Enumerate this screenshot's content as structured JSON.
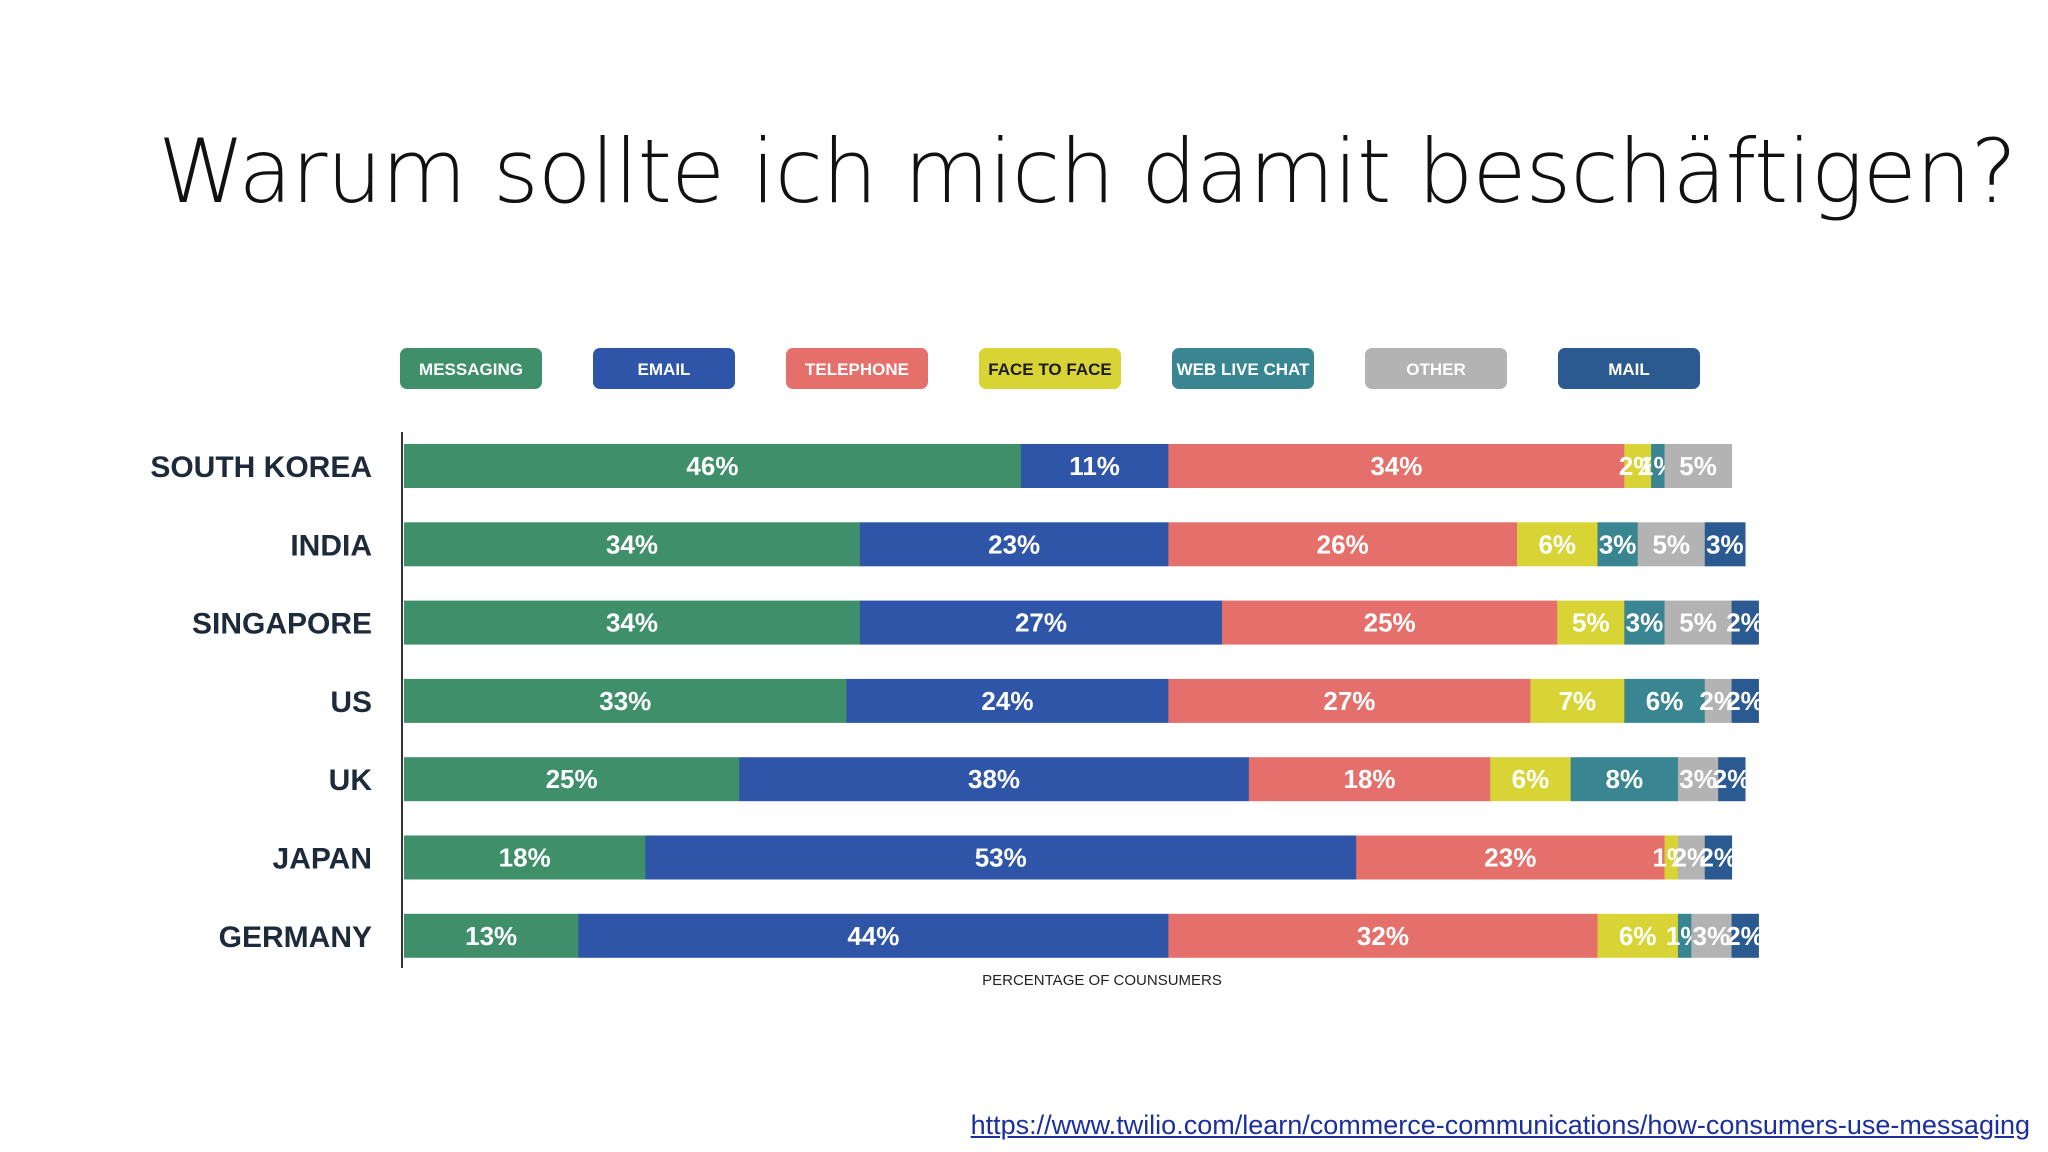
{
  "slide": {
    "title": "Warum sollte ich mich damit beschäftigen?",
    "source_url": "https://www.twilio.com/learn/commerce-communications/how-consumers-use-messaging"
  },
  "chart_data": {
    "type": "bar",
    "orientation": "horizontal",
    "stacked": true,
    "xlabel": "PERCENTAGE OF COUNSUMERS",
    "legend_position": "top",
    "categories": [
      "SOUTH KOREA",
      "INDIA",
      "SINGAPORE",
      "US",
      "UK",
      "JAPAN",
      "GERMANY"
    ],
    "series": [
      {
        "name": "MESSAGING",
        "color": "#3f8f6b",
        "values": [
          46,
          34,
          34,
          33,
          25,
          18,
          13
        ],
        "labels": [
          "46%",
          "34%",
          "34%",
          "33%",
          "25%",
          "18%",
          "13%"
        ]
      },
      {
        "name": "EMAIL",
        "color": "#2e55a8",
        "values": [
          11,
          23,
          27,
          24,
          38,
          53,
          44
        ],
        "labels": [
          "11%",
          "23%",
          "27%",
          "24%",
          "38%",
          "53%",
          "44%"
        ]
      },
      {
        "name": "TELEPHONE",
        "color": "#e5706b",
        "values": [
          34,
          26,
          25,
          27,
          18,
          23,
          32
        ],
        "labels": [
          "34%",
          "26%",
          "25%",
          "27%",
          "18%",
          "23%",
          "32%"
        ]
      },
      {
        "name": "FACE TO FACE",
        "color": "#d8d436",
        "values": [
          2,
          6,
          5,
          7,
          6,
          1,
          6
        ],
        "labels": [
          "2%",
          "6%",
          "5%",
          "7%",
          "6%",
          "1%",
          "6%"
        ]
      },
      {
        "name": "WEB LIVE CHAT",
        "color": "#3a8592",
        "values": [
          1,
          3,
          3,
          6,
          8,
          0,
          1
        ],
        "labels": [
          "1%",
          "3%",
          "3%",
          "6%",
          "8%",
          "",
          "1%"
        ]
      },
      {
        "name": "OTHER",
        "color": "#b3b3b3",
        "values": [
          5,
          5,
          5,
          2,
          3,
          2,
          3
        ],
        "labels": [
          "5%",
          "5%",
          "5%",
          "2%",
          "3%",
          "2%",
          "3%"
        ]
      },
      {
        "name": "MAIL",
        "color": "#2b5a91",
        "values": [
          0,
          3,
          2,
          2,
          2,
          2,
          2
        ],
        "labels": [
          "",
          "3%",
          "2%",
          "2%",
          "2%",
          "2%",
          "2%"
        ]
      }
    ],
    "legend_text_colors": [
      "#ffffff",
      "#ffffff",
      "#ffffff",
      "#1c1c1c",
      "#ffffff",
      "#ffffff",
      "#ffffff"
    ]
  }
}
